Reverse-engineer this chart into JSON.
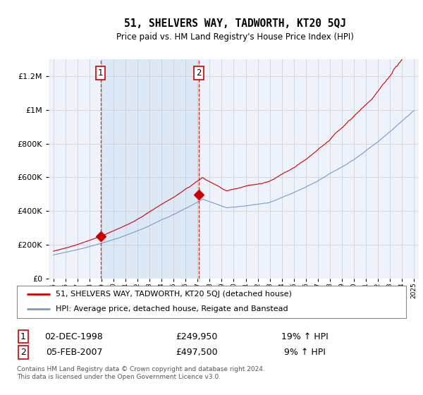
{
  "title": "51, SHELVERS WAY, TADWORTH, KT20 5QJ",
  "subtitle": "Price paid vs. HM Land Registry's House Price Index (HPI)",
  "legend_line1": "51, SHELVERS WAY, TADWORTH, KT20 5QJ (detached house)",
  "legend_line2": "HPI: Average price, detached house, Reigate and Banstead",
  "annotation1_label": "1",
  "annotation1_date": "02-DEC-1998",
  "annotation1_price": "£249,950",
  "annotation1_hpi": "19% ↑ HPI",
  "annotation2_label": "2",
  "annotation2_date": "05-FEB-2007",
  "annotation2_price": "£497,500",
  "annotation2_hpi": "9% ↑ HPI",
  "footer": "Contains HM Land Registry data © Crown copyright and database right 2024.\nThis data is licensed under the Open Government Licence v3.0.",
  "red_color": "#cc0000",
  "blue_color": "#7799cc",
  "shade_color": "#dce8f5",
  "ylim": [
    0,
    1300000
  ],
  "sale1_year": 1998.92,
  "sale1_price": 249950,
  "sale2_year": 2007.09,
  "sale2_price": 497500,
  "background_color": "#ffffff",
  "grid_color": "#cccccc",
  "plot_bg_color": "#eef2fa"
}
